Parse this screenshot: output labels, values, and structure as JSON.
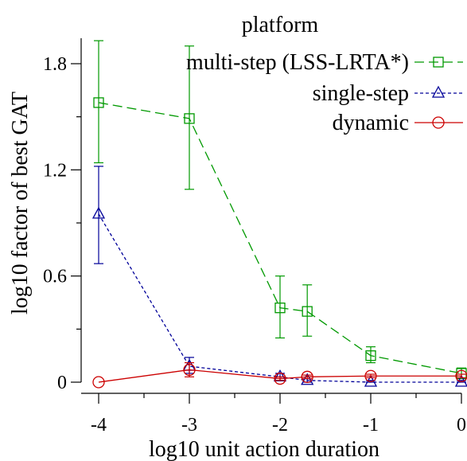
{
  "chart_data": {
    "type": "line",
    "title": "platform",
    "xlabel": "log10 unit action duration",
    "ylabel": "log10 factor of best GAT",
    "xlim": [
      -4,
      0
    ],
    "ylim": [
      0,
      1.8
    ],
    "x_ticks": [
      "-4",
      "-3",
      "-2",
      "-1",
      "0"
    ],
    "y_ticks": [
      "0",
      "0.6",
      "1.2",
      "1.8"
    ],
    "x_tick_values": [
      -4,
      -3,
      -2,
      -1,
      0
    ],
    "y_tick_values": [
      0,
      0.6,
      1.2,
      1.8
    ],
    "x_minor_ticks": [
      -3.5,
      -2.5,
      -1.5,
      -0.5
    ],
    "y_minor_ticks": [
      0.3,
      0.9,
      1.5
    ],
    "grid": false,
    "legend_position": "top-right",
    "series": [
      {
        "name": "multi-step (LSS-LRTA*)",
        "color": "#009900",
        "dash": "long-dash",
        "marker": "square",
        "x": [
          -4,
          -3,
          -2,
          -1.7,
          -1,
          0
        ],
        "y": [
          1.58,
          1.49,
          0.42,
          0.4,
          0.15,
          0.05
        ],
        "err_low": [
          1.24,
          1.09,
          0.25,
          0.26,
          0.11,
          0.02
        ],
        "err_high": [
          1.93,
          1.9,
          0.6,
          0.55,
          0.2,
          0.08
        ]
      },
      {
        "name": "single-step",
        "color": "#000099",
        "dash": "short-dash",
        "marker": "triangle",
        "x": [
          -4,
          -3,
          -2,
          -1.7,
          -1,
          0
        ],
        "y": [
          0.95,
          0.09,
          0.03,
          0.01,
          0.0,
          0.0
        ],
        "err_low": [
          0.67,
          0.05,
          0.01,
          0.0,
          0.0,
          0.0
        ],
        "err_high": [
          1.22,
          0.14,
          0.05,
          0.02,
          0.01,
          0.01
        ]
      },
      {
        "name": "dynamic",
        "color": "#cc0000",
        "dash": "solid",
        "marker": "circle",
        "x": [
          -4,
          -3,
          -2,
          -1.7,
          -1,
          0
        ],
        "y": [
          0.0,
          0.07,
          0.02,
          0.03,
          0.035,
          0.035
        ],
        "err_low": [
          0.0,
          0.03,
          0.01,
          0.02,
          0.025,
          0.025
        ],
        "err_high": [
          0.0,
          0.11,
          0.03,
          0.04,
          0.045,
          0.045
        ]
      }
    ]
  }
}
